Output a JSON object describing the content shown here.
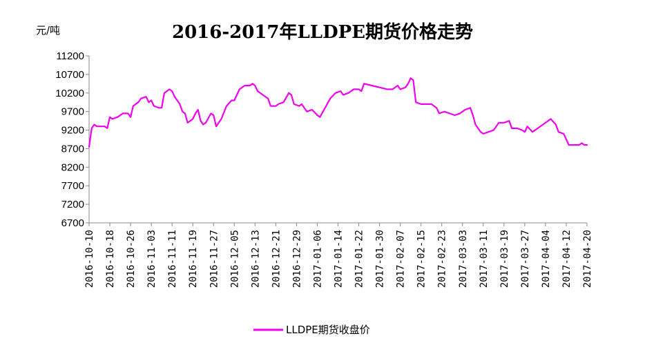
{
  "chart_data": {
    "type": "line",
    "title": "2016-2017年LLDPE期货价格走势",
    "y_unit": "元/吨",
    "ylim": [
      6700,
      11200
    ],
    "yticks": [
      6700,
      7200,
      7700,
      8200,
      8700,
      9200,
      9700,
      10200,
      10700,
      11200
    ],
    "x_start": "2016-10-10",
    "x_end": "2017-04-20",
    "xticks": [
      "2016-10-10",
      "2016-10-18",
      "2016-10-26",
      "2016-11-03",
      "2016-11-11",
      "2016-11-19",
      "2016-11-27",
      "2016-12-05",
      "2016-12-13",
      "2016-12-21",
      "2016-12-29",
      "2017-01-06",
      "2017-01-14",
      "2017-01-22",
      "2017-01-30",
      "2017-02-07",
      "2017-02-15",
      "2017-02-23",
      "2017-03-03",
      "2017-03-11",
      "2017-03-19",
      "2017-03-27",
      "2017-04-04",
      "2017-04-12",
      "2017-04-20"
    ],
    "legend_position": "bottom",
    "series": [
      {
        "name": "LLDPE期货收盘价",
        "color": "#ee00ee",
        "points": [
          [
            "2016-10-10",
            8750
          ],
          [
            "2016-10-11",
            9250
          ],
          [
            "2016-10-12",
            9350
          ],
          [
            "2016-10-13",
            9300
          ],
          [
            "2016-10-14",
            9300
          ],
          [
            "2016-10-16",
            9300
          ],
          [
            "2016-10-17",
            9250
          ],
          [
            "2016-10-18",
            9550
          ],
          [
            "2016-10-19",
            9500
          ],
          [
            "2016-10-21",
            9550
          ],
          [
            "2016-10-23",
            9650
          ],
          [
            "2016-10-25",
            9650
          ],
          [
            "2016-10-26",
            9550
          ],
          [
            "2016-10-27",
            9850
          ],
          [
            "2016-10-29",
            9950
          ],
          [
            "2016-10-30",
            10050
          ],
          [
            "2016-11-01",
            10100
          ],
          [
            "2016-11-02",
            9950
          ],
          [
            "2016-11-03",
            10000
          ],
          [
            "2016-11-04",
            9850
          ],
          [
            "2016-11-06",
            9800
          ],
          [
            "2016-11-07",
            9800
          ],
          [
            "2016-11-08",
            10200
          ],
          [
            "2016-11-10",
            10300
          ],
          [
            "2016-11-11",
            10250
          ],
          [
            "2016-11-12",
            10100
          ],
          [
            "2016-11-14",
            9900
          ],
          [
            "2016-11-15",
            9700
          ],
          [
            "2016-11-16",
            9650
          ],
          [
            "2016-11-17",
            9400
          ],
          [
            "2016-11-18",
            9450
          ],
          [
            "2016-11-19",
            9500
          ],
          [
            "2016-11-20",
            9650
          ],
          [
            "2016-11-21",
            9750
          ],
          [
            "2016-11-22",
            9450
          ],
          [
            "2016-11-23",
            9350
          ],
          [
            "2016-11-24",
            9400
          ],
          [
            "2016-11-26",
            9650
          ],
          [
            "2016-11-27",
            9600
          ],
          [
            "2016-11-28",
            9300
          ],
          [
            "2016-11-30",
            9500
          ],
          [
            "2016-12-02",
            9850
          ],
          [
            "2016-12-04",
            10000
          ],
          [
            "2016-12-05",
            10000
          ],
          [
            "2016-12-06",
            10150
          ],
          [
            "2016-12-07",
            10300
          ],
          [
            "2016-12-09",
            10400
          ],
          [
            "2016-12-11",
            10400
          ],
          [
            "2016-12-12",
            10450
          ],
          [
            "2016-12-13",
            10400
          ],
          [
            "2016-12-14",
            10250
          ],
          [
            "2016-12-16",
            10150
          ],
          [
            "2016-12-18",
            10050
          ],
          [
            "2016-12-19",
            9850
          ],
          [
            "2016-12-21",
            9850
          ],
          [
            "2016-12-22",
            9900
          ],
          [
            "2016-12-24",
            9950
          ],
          [
            "2016-12-26",
            10200
          ],
          [
            "2016-12-27",
            10150
          ],
          [
            "2016-12-28",
            9900
          ],
          [
            "2016-12-30",
            9850
          ],
          [
            "2016-12-31",
            9900
          ],
          [
            "2017-01-02",
            9700
          ],
          [
            "2017-01-04",
            9750
          ],
          [
            "2017-01-06",
            9600
          ],
          [
            "2017-01-07",
            9550
          ],
          [
            "2017-01-09",
            9800
          ],
          [
            "2017-01-11",
            10050
          ],
          [
            "2017-01-13",
            10200
          ],
          [
            "2017-01-15",
            10250
          ],
          [
            "2017-01-16",
            10150
          ],
          [
            "2017-01-18",
            10200
          ],
          [
            "2017-01-20",
            10300
          ],
          [
            "2017-01-22",
            10300
          ],
          [
            "2017-01-23",
            10250
          ],
          [
            "2017-01-24",
            10450
          ],
          [
            "2017-01-27",
            10400
          ],
          [
            "2017-01-30",
            10350
          ],
          [
            "2017-02-02",
            10300
          ],
          [
            "2017-02-04",
            10300
          ],
          [
            "2017-02-06",
            10400
          ],
          [
            "2017-02-07",
            10300
          ],
          [
            "2017-02-09",
            10350
          ],
          [
            "2017-02-10",
            10450
          ],
          [
            "2017-02-11",
            10600
          ],
          [
            "2017-02-12",
            10550
          ],
          [
            "2017-02-13",
            9950
          ],
          [
            "2017-02-15",
            9900
          ],
          [
            "2017-02-17",
            9900
          ],
          [
            "2017-02-19",
            9900
          ],
          [
            "2017-02-21",
            9800
          ],
          [
            "2017-02-22",
            9650
          ],
          [
            "2017-02-24",
            9700
          ],
          [
            "2017-02-26",
            9650
          ],
          [
            "2017-02-28",
            9600
          ],
          [
            "2017-03-02",
            9650
          ],
          [
            "2017-03-04",
            9750
          ],
          [
            "2017-03-06",
            9800
          ],
          [
            "2017-03-07",
            9600
          ],
          [
            "2017-03-08",
            9350
          ],
          [
            "2017-03-10",
            9150
          ],
          [
            "2017-03-11",
            9100
          ],
          [
            "2017-03-13",
            9150
          ],
          [
            "2017-03-15",
            9200
          ],
          [
            "2017-03-16",
            9300
          ],
          [
            "2017-03-17",
            9400
          ],
          [
            "2017-03-19",
            9400
          ],
          [
            "2017-03-21",
            9450
          ],
          [
            "2017-03-22",
            9250
          ],
          [
            "2017-03-24",
            9250
          ],
          [
            "2017-03-26",
            9200
          ],
          [
            "2017-03-27",
            9150
          ],
          [
            "2017-03-28",
            9300
          ],
          [
            "2017-03-30",
            9150
          ],
          [
            "2017-04-01",
            9250
          ],
          [
            "2017-04-03",
            9350
          ],
          [
            "2017-04-05",
            9450
          ],
          [
            "2017-04-06",
            9500
          ],
          [
            "2017-04-08",
            9350
          ],
          [
            "2017-04-09",
            9150
          ],
          [
            "2017-04-11",
            9100
          ],
          [
            "2017-04-12",
            8950
          ],
          [
            "2017-04-13",
            8800
          ],
          [
            "2017-04-15",
            8800
          ],
          [
            "2017-04-17",
            8800
          ],
          [
            "2017-04-18",
            8850
          ],
          [
            "2017-04-19",
            8800
          ],
          [
            "2017-04-20",
            8800
          ]
        ]
      }
    ]
  }
}
